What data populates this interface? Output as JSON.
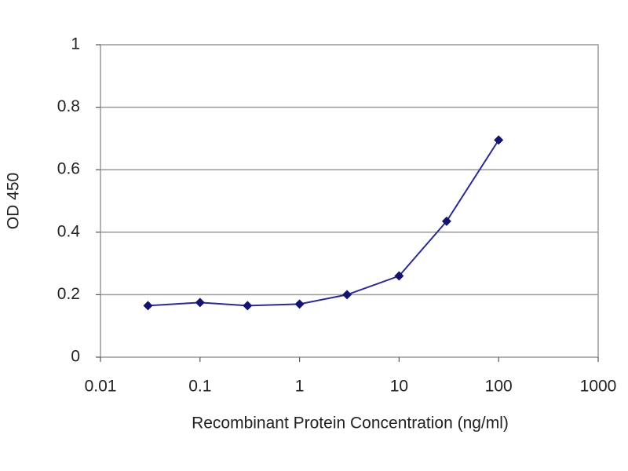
{
  "chart_data": {
    "type": "line",
    "x_label": "Recombinant Protein Concentration (ng/ml)",
    "y_label": "OD 450",
    "x": [
      0.03,
      0.1,
      0.3,
      1,
      3,
      10,
      30,
      100
    ],
    "values": [
      0.165,
      0.175,
      0.165,
      0.17,
      0.2,
      0.26,
      0.435,
      0.695
    ],
    "color": "#2b2b95",
    "marker_color": "#14146e",
    "marker": "diamond",
    "xscale": "log",
    "xlim": [
      0.01,
      1000
    ],
    "xticks": [
      0.01,
      0.1,
      1,
      10,
      100,
      1000
    ],
    "ylim": [
      0,
      1
    ],
    "yticks": [
      0,
      0.2,
      0.4,
      0.6,
      0.8,
      1
    ],
    "grid": true
  }
}
